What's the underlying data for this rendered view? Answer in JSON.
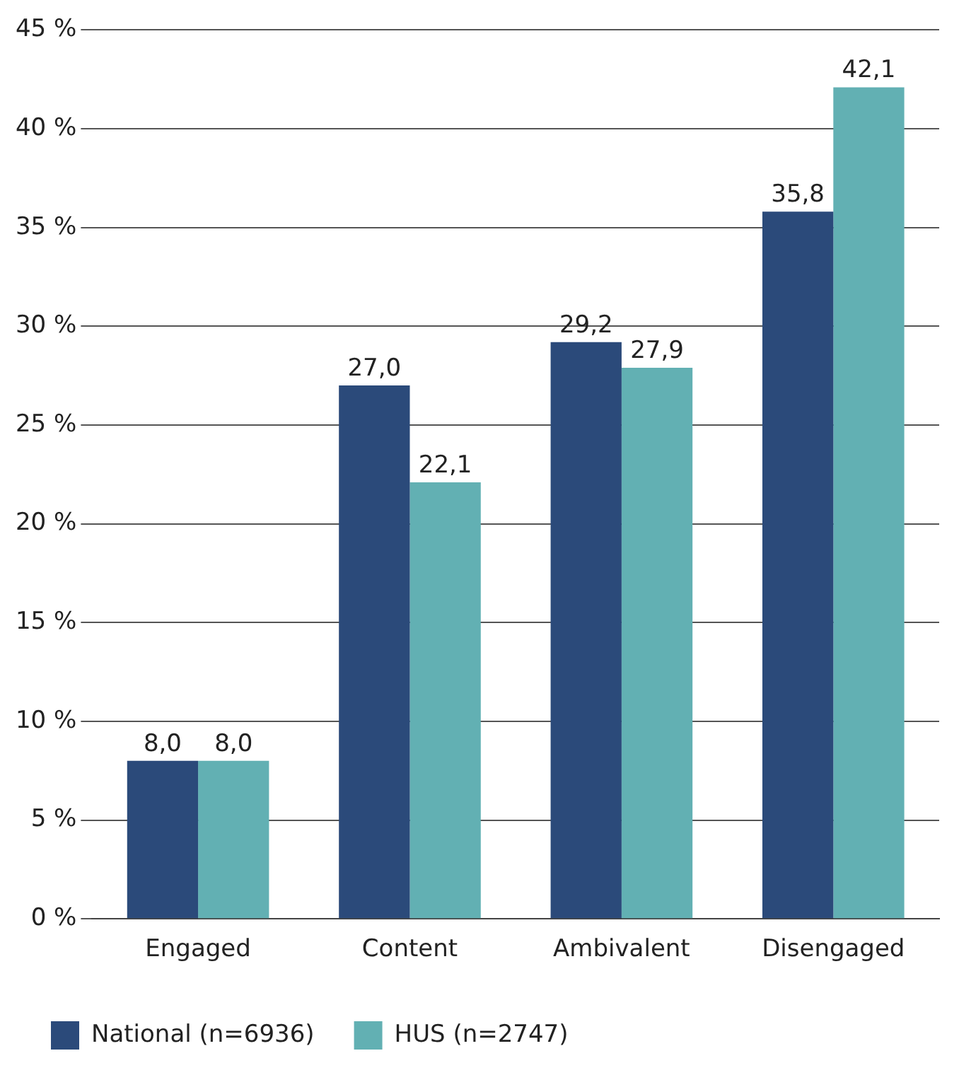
{
  "chart_data": {
    "type": "bar",
    "categories": [
      "Engaged",
      "Content",
      "Ambivalent",
      "Disengaged"
    ],
    "series": [
      {
        "name": "National (n=6936)",
        "color": "#2b4a7a",
        "values": [
          8.0,
          27.0,
          29.2,
          35.8
        ],
        "value_labels": [
          "8,0",
          "27,0",
          "29,2",
          "35,8"
        ]
      },
      {
        "name": "HUS (n=2747)",
        "color": "#62b0b3",
        "values": [
          8.0,
          22.1,
          27.9,
          42.1
        ],
        "value_labels": [
          "8,0",
          "22,1",
          "27,9",
          "42,1"
        ]
      }
    ],
    "ylim": [
      0,
      45
    ],
    "yticks": [
      {
        "value": 0,
        "label": "0 %"
      },
      {
        "value": 5,
        "label": "5 %"
      },
      {
        "value": 10,
        "label": "10 %"
      },
      {
        "value": 15,
        "label": "15 %"
      },
      {
        "value": 20,
        "label": "20 %"
      },
      {
        "value": 25,
        "label": "25 %"
      },
      {
        "value": 30,
        "label": "30 %"
      },
      {
        "value": 35,
        "label": "35 %"
      },
      {
        "value": 40,
        "label": "40 %"
      },
      {
        "value": 45,
        "label": "45 %"
      }
    ],
    "grid": "y",
    "legend": "bottom"
  }
}
